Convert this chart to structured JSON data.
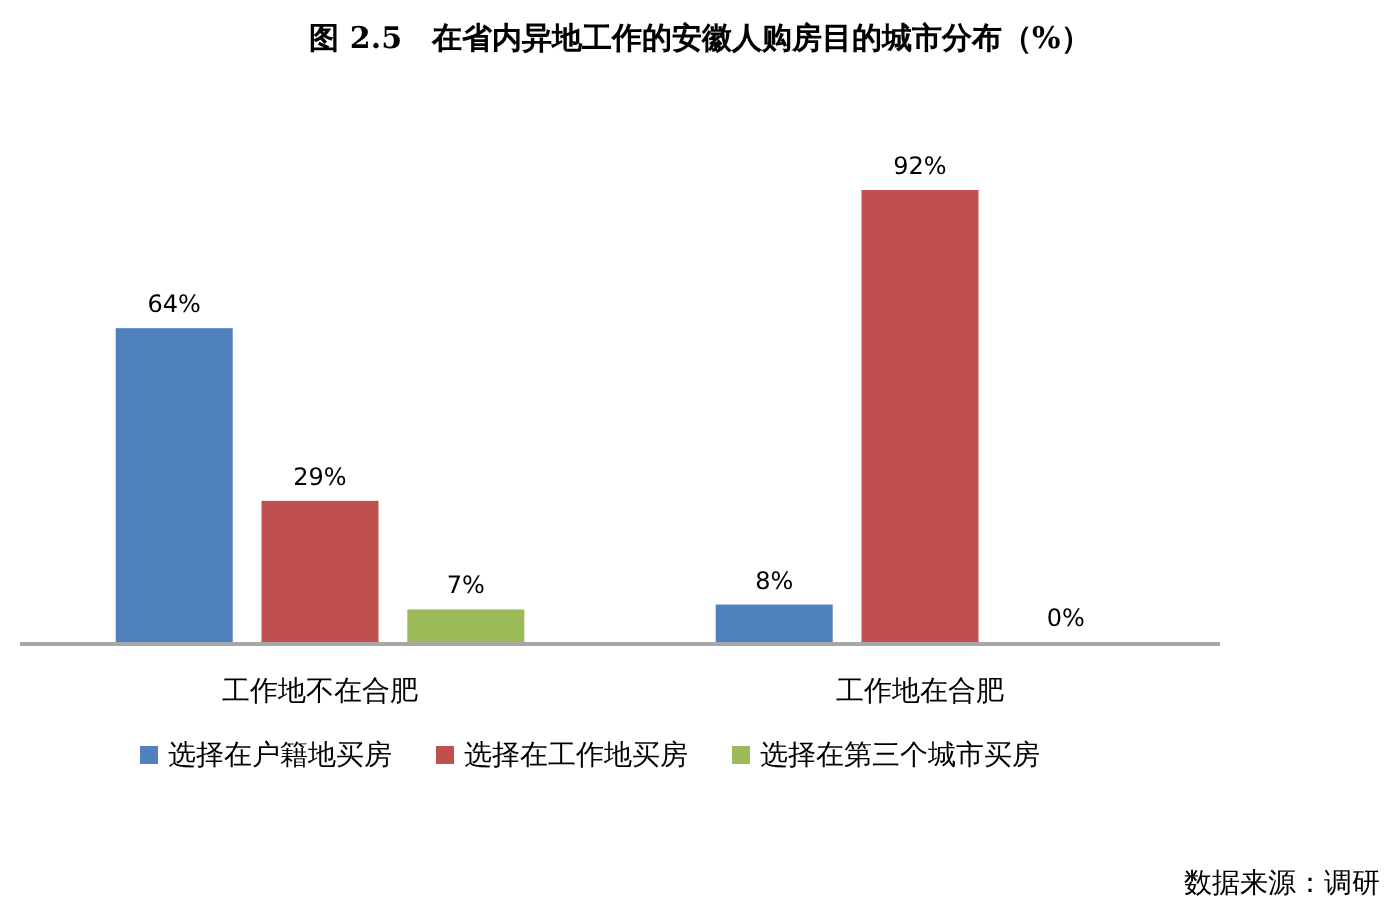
{
  "chart_data": {
    "type": "bar",
    "title": "图 2.5　在省内异地工作的安徽人购房目的城市分布（%）",
    "categories": [
      "工作地不在合肥",
      "工作地在合肥"
    ],
    "series": [
      {
        "name": "选择在户籍地买房",
        "color": "#4f81bd",
        "values": [
          64,
          8
        ],
        "value_labels": [
          "64%",
          "8%"
        ]
      },
      {
        "name": "选择在工作地买房",
        "color": "#c0504d",
        "values": [
          29,
          92
        ],
        "value_labels": [
          "29%",
          "92%"
        ]
      },
      {
        "name": "选择在第三个城市买房",
        "color": "#9bbb59",
        "values": [
          7,
          0
        ],
        "value_labels": [
          "7%",
          "0%"
        ]
      }
    ],
    "legend": "bottom",
    "annotations": [
      "数据来源：调研"
    ]
  }
}
